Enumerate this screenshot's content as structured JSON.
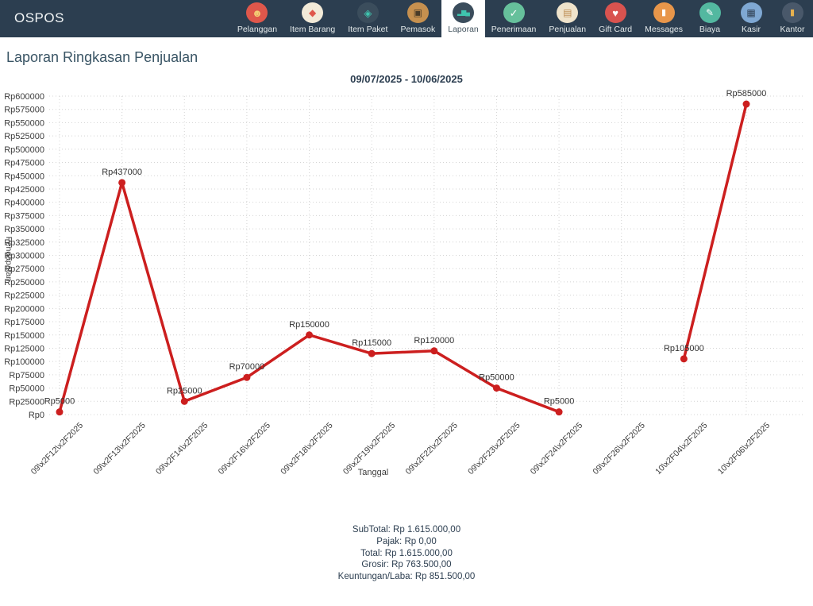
{
  "navbar": {
    "brand": "OSPOS",
    "items": [
      {
        "label": "Pelanggan",
        "icon": "customers-icon",
        "circle_color": "#df574b",
        "glyph": "☻",
        "glyph_color": "#f3cf74",
        "glyph_size": 13,
        "active": false
      },
      {
        "label": "Item Barang",
        "icon": "items-icon",
        "circle_color": "#f2ead8",
        "glyph": "◆",
        "glyph_color": "#df574b",
        "glyph_size": 12,
        "active": false
      },
      {
        "label": "Item Paket",
        "icon": "item-kits-icon",
        "circle_color": "#3b4d5c",
        "glyph": "◈",
        "glyph_color": "#3fc4ae",
        "glyph_size": 13,
        "active": false
      },
      {
        "label": "Pemasok",
        "icon": "suppliers-icon",
        "circle_color": "#c6904f",
        "glyph": "▣",
        "glyph_color": "#4a3b28",
        "glyph_size": 12,
        "active": false
      },
      {
        "label": "Laporan",
        "icon": "reports-icon",
        "circle_color": "#3b4d5c",
        "glyph": "▂▆▄",
        "glyph_color": "#3fc4ae",
        "glyph_size": 8,
        "active": true
      },
      {
        "label": "Penerimaan",
        "icon": "receivings-icon",
        "circle_color": "#66c09b",
        "glyph": "✓",
        "glyph_color": "#ffffff",
        "glyph_size": 13,
        "active": false
      },
      {
        "label": "Penjualan",
        "icon": "sales-icon",
        "circle_color": "#efe3cb",
        "glyph": "▤",
        "glyph_color": "#bb8a50",
        "glyph_size": 12,
        "active": false
      },
      {
        "label": "Gift Card",
        "icon": "giftcard-icon",
        "circle_color": "#d9534f",
        "glyph": "♥",
        "glyph_color": "#ffffff",
        "glyph_size": 13,
        "active": false
      },
      {
        "label": "Messages",
        "icon": "messages-icon",
        "circle_color": "#e8964a",
        "glyph": "▮",
        "glyph_color": "#ffffff",
        "glyph_size": 11,
        "active": false
      },
      {
        "label": "Biaya",
        "icon": "expenses-icon",
        "circle_color": "#53b8a0",
        "glyph": "✎",
        "glyph_color": "#ffffff",
        "glyph_size": 12,
        "active": false
      },
      {
        "label": "Kasir",
        "icon": "cashier-icon",
        "circle_color": "#7fa8d3",
        "glyph": "▦",
        "glyph_color": "#2f3f52",
        "glyph_size": 12,
        "active": false
      },
      {
        "label": "Kantor",
        "icon": "office-icon",
        "circle_color": "#49586a",
        "glyph": "▮",
        "glyph_color": "#e8b14e",
        "glyph_size": 11,
        "active": false
      }
    ]
  },
  "page": {
    "title": "Laporan Ringkasan Penjualan"
  },
  "chart_data": {
    "type": "line",
    "title": "09/07/2025 - 10/06/2025",
    "xlabel": "Tanggal",
    "ylabel": "Pendapatan",
    "categories": [
      "09\\x2F12\\x2F2025",
      "09\\x2F13\\x2F2025",
      "09\\x2F14\\x2F2025",
      "09\\x2F16\\x2F2025",
      "09\\x2F18\\x2F2025",
      "09\\x2F19\\x2F2025",
      "09\\x2F22\\x2F2025",
      "09\\x2F23\\x2F2025",
      "09\\x2F24\\x2F2025",
      "09\\x2F26\\x2F2025",
      "10\\x2F04\\x2F2025",
      "10\\x2F06\\x2F2025"
    ],
    "values": [
      5000,
      437000,
      25000,
      70000,
      150000,
      115000,
      120000,
      50000,
      5000,
      null,
      105000,
      585000
    ],
    "ylim": [
      0,
      600000
    ],
    "ytick": 25000,
    "currency_prefix": "Rp",
    "grid": true,
    "legend": "none",
    "line_color": "#cc1f1f",
    "grid_color": "#d4d4d4",
    "tick_label_color": "#3c3c3c"
  },
  "summary": {
    "lines": [
      {
        "label": "SubTotal",
        "value": "Rp 1.615.000,00"
      },
      {
        "label": "Pajak",
        "value": "Rp 0,00"
      },
      {
        "label": "Total",
        "value": "Rp 1.615.000,00"
      },
      {
        "label": "Grosir",
        "value": "Rp 763.500,00"
      },
      {
        "label": "Keuntungan/Laba",
        "value": "Rp 851.500,00"
      }
    ]
  }
}
